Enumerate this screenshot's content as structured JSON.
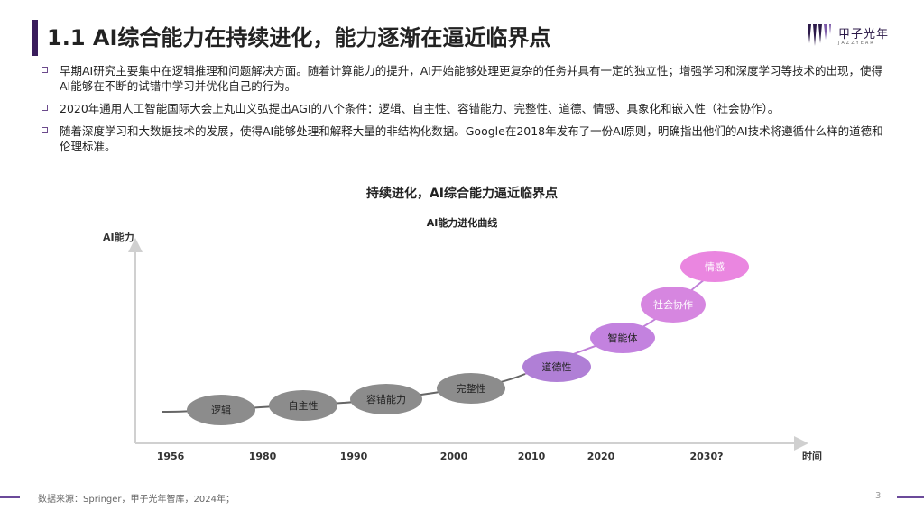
{
  "header": {
    "title": "1.1 AI综合能力在持续进化，能力逐渐在逼近临界点",
    "logo_text": "甲子光年",
    "logo_sub": "JAZZYEAR"
  },
  "bullets": [
    "早期AI研究主要集中在逻辑推理和问题解决方面。随着计算能力的提升，AI开始能够处理更复杂的任务并具有一定的独立性；增强学习和深度学习等技术的出现，使得AI能够在不断的试错中学习并优化自己的行为。",
    "2020年通用人工智能国际大会上丸山义弘提出AGI的八个条件：逻辑、自主性、容错能力、完整性、道德、情感、具象化和嵌入性（社会协作）。",
    "随着深度学习和大数据技术的发展，使得AI能够处理和解释大量的非结构化数据。Google在2018年发布了一份AI原则，明确指出他们的AI技术将遵循什么样的道德和伦理标准。"
  ],
  "diagram": {
    "title": "持续进化，AI综合能力逼近临界点",
    "subtitle": "AI能力进化曲线",
    "y_axis_label": "AI能力",
    "x_axis_label": "时间",
    "x_ticks": [
      "1956",
      "1980",
      "1990",
      "2000",
      "2010",
      "2020",
      "2030?"
    ],
    "nodes": [
      {
        "label": "逻辑",
        "color": "#8c8c8c"
      },
      {
        "label": "自主性",
        "color": "#8c8c8c"
      },
      {
        "label": "容错能力",
        "color": "#8c8c8c"
      },
      {
        "label": "完整性",
        "color": "#8c8c8c"
      },
      {
        "label": "道德性",
        "color": "#b07fd6"
      },
      {
        "label": "智能体",
        "color": "#c382df"
      },
      {
        "label": "社会协作",
        "color": "#d686e0"
      },
      {
        "label": "情感",
        "color": "#ea86e0"
      }
    ]
  },
  "footer": {
    "source": "数据来源：Springer，甲子光年智库，2024年；",
    "page": "3"
  }
}
